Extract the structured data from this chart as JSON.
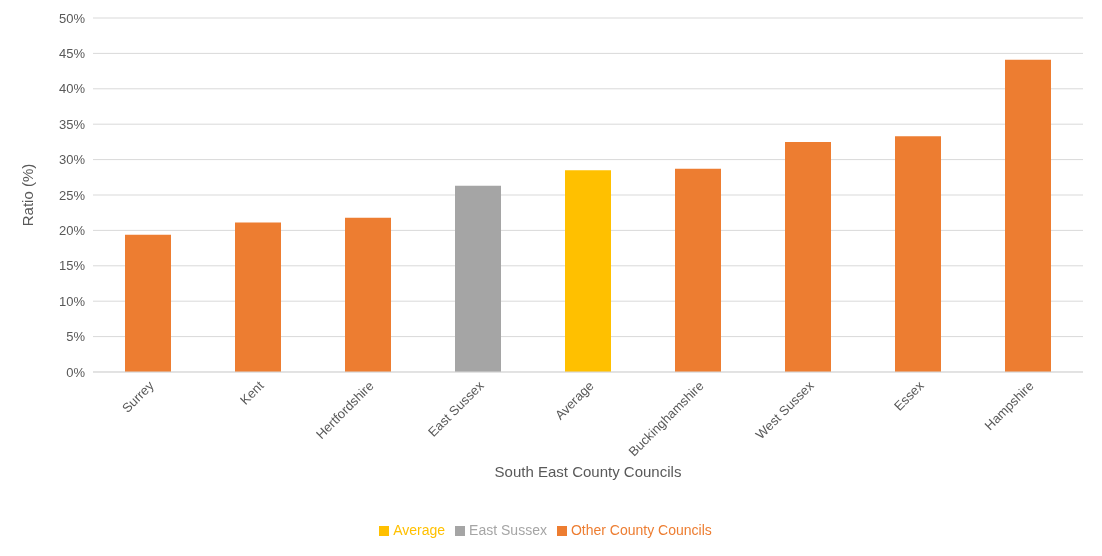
{
  "chart_data": {
    "type": "bar",
    "xlabel": "South East County Councils",
    "ylabel": "Ratio (%)",
    "categories": [
      "Surrey",
      "Kent",
      "Hertfordshire",
      "East Sussex",
      "Average",
      "Buckinghamshire",
      "West Sussex",
      "Essex",
      "Hampshire"
    ],
    "series": [
      {
        "name": "Other County Councils",
        "color": "#ed7d31",
        "values": [
          19.4,
          21.1,
          21.8,
          null,
          null,
          28.7,
          32.5,
          33.3,
          44.1
        ]
      },
      {
        "name": "East Sussex",
        "color": "#a5a5a5",
        "values": [
          null,
          null,
          null,
          26.3,
          null,
          null,
          null,
          null,
          null
        ]
      },
      {
        "name": "Average",
        "color": "#ffc000",
        "values": [
          null,
          null,
          null,
          null,
          28.5,
          null,
          null,
          null,
          null
        ]
      }
    ],
    "stacked": true,
    "ylim": [
      0,
      50
    ],
    "yticks": [
      {
        "value": 0,
        "label": "0%"
      },
      {
        "value": 5,
        "label": "5%"
      },
      {
        "value": 10,
        "label": "10%"
      },
      {
        "value": 15,
        "label": "15%"
      },
      {
        "value": 20,
        "label": "20%"
      },
      {
        "value": 25,
        "label": "25%"
      },
      {
        "value": 30,
        "label": "30%"
      },
      {
        "value": 35,
        "label": "35%"
      },
      {
        "value": 40,
        "label": "40%"
      },
      {
        "value": 45,
        "label": "45%"
      },
      {
        "value": 50,
        "label": "50%"
      }
    ],
    "grid": "y",
    "legend": "bottom"
  }
}
